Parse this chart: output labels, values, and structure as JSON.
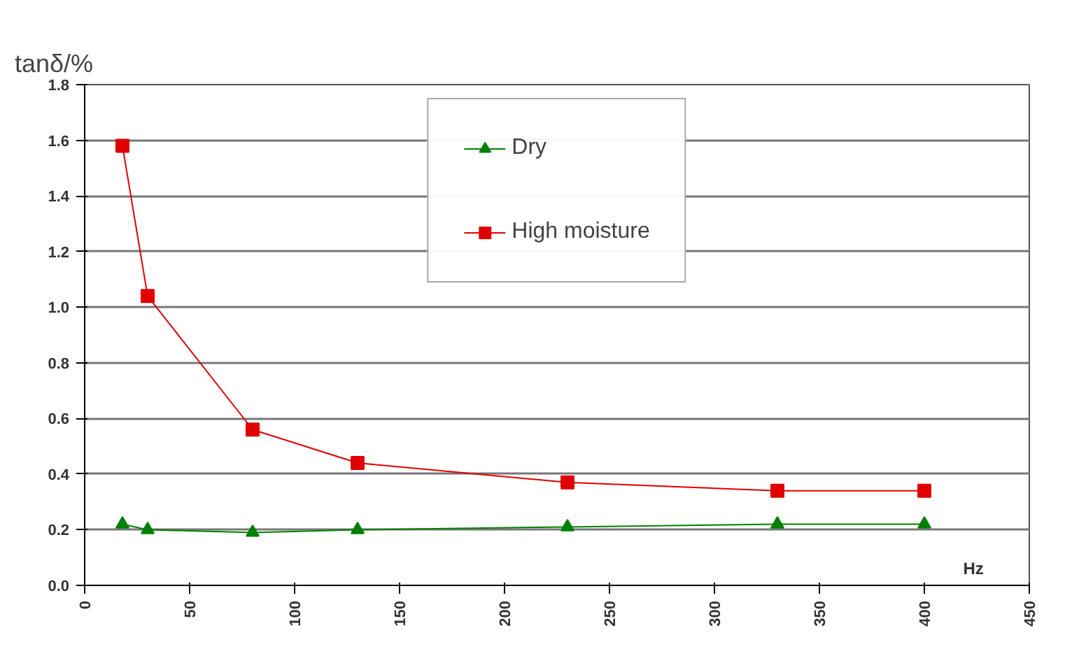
{
  "chart_data": {
    "type": "line",
    "ylabel": "tanδ/%",
    "xlabel": "Hz",
    "x": [
      18,
      30,
      80,
      130,
      230,
      330,
      400
    ],
    "series": [
      {
        "name": "Dry",
        "color": "#008000",
        "marker": "triangle",
        "values": [
          0.22,
          0.2,
          0.19,
          0.2,
          0.21,
          0.22,
          0.22
        ]
      },
      {
        "name": "High moisture",
        "color": "#e00000",
        "marker": "square",
        "values": [
          1.58,
          1.04,
          0.56,
          0.44,
          0.37,
          0.34,
          0.34
        ]
      }
    ],
    "xlim": [
      0,
      450
    ],
    "xticks": [
      0,
      50,
      100,
      150,
      200,
      250,
      300,
      350,
      400,
      450
    ],
    "ylim": [
      0,
      1.8
    ],
    "yticks": [
      {
        "value": 0,
        "label": "0.0"
      },
      0.2,
      0.4,
      0.6,
      0.8,
      {
        "value": 1.0,
        "label": "1.0"
      },
      1.2,
      1.4,
      1.6,
      1.8
    ],
    "grid": "y",
    "legend": "top",
    "line_style": "solid"
  }
}
